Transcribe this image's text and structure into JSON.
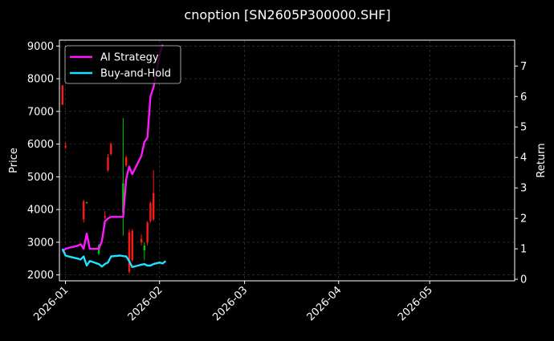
{
  "chart_data": {
    "type": "line",
    "title": "cnoption [SN2605P300000.SHF]",
    "xlabel": "",
    "ylabel": "Price",
    "y2label": "Return",
    "x_ticks": [
      "2026-01",
      "2026-02",
      "2026-03",
      "2026-04",
      "2026-05"
    ],
    "xlim": [
      "2025-12-30",
      "2026-05-29"
    ],
    "y_ticks": [
      2000,
      3000,
      4000,
      5000,
      6000,
      7000,
      8000,
      9000
    ],
    "ylim": [
      1820,
      9180
    ],
    "y2_ticks": [
      0,
      1,
      2,
      3,
      4,
      5,
      6,
      7
    ],
    "y2lim": [
      -0.05,
      7.85
    ],
    "grid": true,
    "legend_position": "top-left",
    "colors": {
      "background": "#000000",
      "up_candle": "#00c800",
      "down_candle": "#ff1a1a",
      "grid": "#444444"
    },
    "candles": [
      {
        "date": "2025-12-31",
        "open": 7800,
        "high": 7800,
        "low": 7200,
        "close": 7200
      },
      {
        "date": "2026-01-01",
        "open": 5950,
        "high": 6050,
        "low": 5850,
        "close": 5900
      },
      {
        "date": "2026-01-07",
        "open": 4250,
        "high": 4300,
        "low": 3600,
        "close": 3700
      },
      {
        "date": "2026-01-08",
        "open": 4220,
        "high": 4240,
        "low": 4180,
        "close": 4220
      },
      {
        "date": "2026-01-12",
        "open": 2650,
        "high": 2950,
        "low": 2600,
        "close": 2900
      },
      {
        "date": "2026-01-14",
        "open": 3800,
        "high": 3950,
        "low": 3700,
        "close": 3750
      },
      {
        "date": "2026-01-15",
        "open": 5600,
        "high": 5700,
        "low": 5150,
        "close": 5200
      },
      {
        "date": "2026-01-16",
        "open": 6000,
        "high": 6050,
        "low": 5650,
        "close": 5700
      },
      {
        "date": "2026-01-20",
        "open": 3900,
        "high": 6800,
        "low": 3200,
        "close": 4800
      },
      {
        "date": "2026-01-21",
        "open": 5600,
        "high": 5650,
        "low": 5300,
        "close": 5350
      },
      {
        "date": "2026-01-22",
        "open": 3300,
        "high": 3400,
        "low": 2050,
        "close": 2100
      },
      {
        "date": "2026-01-23",
        "open": 3350,
        "high": 3400,
        "low": 2400,
        "close": 2450
      },
      {
        "date": "2026-01-26",
        "open": 3100,
        "high": 3250,
        "low": 2900,
        "close": 3000
      },
      {
        "date": "2026-01-27",
        "open": 2750,
        "high": 3000,
        "low": 2450,
        "close": 2900
      },
      {
        "date": "2026-01-28",
        "open": 3600,
        "high": 3650,
        "low": 2900,
        "close": 3000
      },
      {
        "date": "2026-01-29",
        "open": 4200,
        "high": 4250,
        "low": 3600,
        "close": 3650
      },
      {
        "date": "2026-01-30",
        "open": 4500,
        "high": 5200,
        "low": 3650,
        "close": 3700
      }
    ],
    "series": [
      {
        "name": "AI Strategy",
        "color": "#ff19ff",
        "axis": "right",
        "points": [
          [
            "2025-12-31",
            0.9
          ],
          [
            "2026-01-01",
            1.0
          ],
          [
            "2026-01-02",
            1.03
          ],
          [
            "2026-01-05",
            1.1
          ],
          [
            "2026-01-06",
            1.15
          ],
          [
            "2026-01-07",
            1.0
          ],
          [
            "2026-01-08",
            1.5
          ],
          [
            "2026-01-09",
            1.0
          ],
          [
            "2026-01-12",
            1.0
          ],
          [
            "2026-01-13",
            1.25
          ],
          [
            "2026-01-14",
            1.9
          ],
          [
            "2026-01-15",
            2.0
          ],
          [
            "2026-01-16",
            2.05
          ],
          [
            "2026-01-19",
            2.05
          ],
          [
            "2026-01-20",
            2.05
          ],
          [
            "2026-01-21",
            3.3
          ],
          [
            "2026-01-22",
            3.7
          ],
          [
            "2026-01-23",
            3.45
          ],
          [
            "2026-01-26",
            4.05
          ],
          [
            "2026-01-27",
            4.5
          ],
          [
            "2026-01-28",
            4.65
          ],
          [
            "2026-01-29",
            6.0
          ],
          [
            "2026-01-30",
            6.3
          ],
          [
            "2026-02-01",
            7.35
          ],
          [
            "2026-02-02",
            7.7
          ]
        ]
      },
      {
        "name": "Buy-and-Hold",
        "color": "#1ce4ff",
        "axis": "right",
        "points": [
          [
            "2025-12-31",
            1.0
          ],
          [
            "2026-01-01",
            0.78
          ],
          [
            "2026-01-02",
            0.75
          ],
          [
            "2026-01-05",
            0.68
          ],
          [
            "2026-01-06",
            0.65
          ],
          [
            "2026-01-07",
            0.75
          ],
          [
            "2026-01-08",
            0.45
          ],
          [
            "2026-01-09",
            0.6
          ],
          [
            "2026-01-12",
            0.5
          ],
          [
            "2026-01-13",
            0.42
          ],
          [
            "2026-01-14",
            0.5
          ],
          [
            "2026-01-15",
            0.55
          ],
          [
            "2026-01-16",
            0.75
          ],
          [
            "2026-01-19",
            0.78
          ],
          [
            "2026-01-20",
            0.76
          ],
          [
            "2026-01-21",
            0.75
          ],
          [
            "2026-01-22",
            0.6
          ],
          [
            "2026-01-23",
            0.4
          ],
          [
            "2026-01-26",
            0.48
          ],
          [
            "2026-01-27",
            0.5
          ],
          [
            "2026-01-28",
            0.45
          ],
          [
            "2026-01-29",
            0.45
          ],
          [
            "2026-01-30",
            0.5
          ],
          [
            "2026-02-01",
            0.55
          ],
          [
            "2026-02-02",
            0.52
          ],
          [
            "2026-02-03",
            0.6
          ]
        ]
      }
    ]
  }
}
